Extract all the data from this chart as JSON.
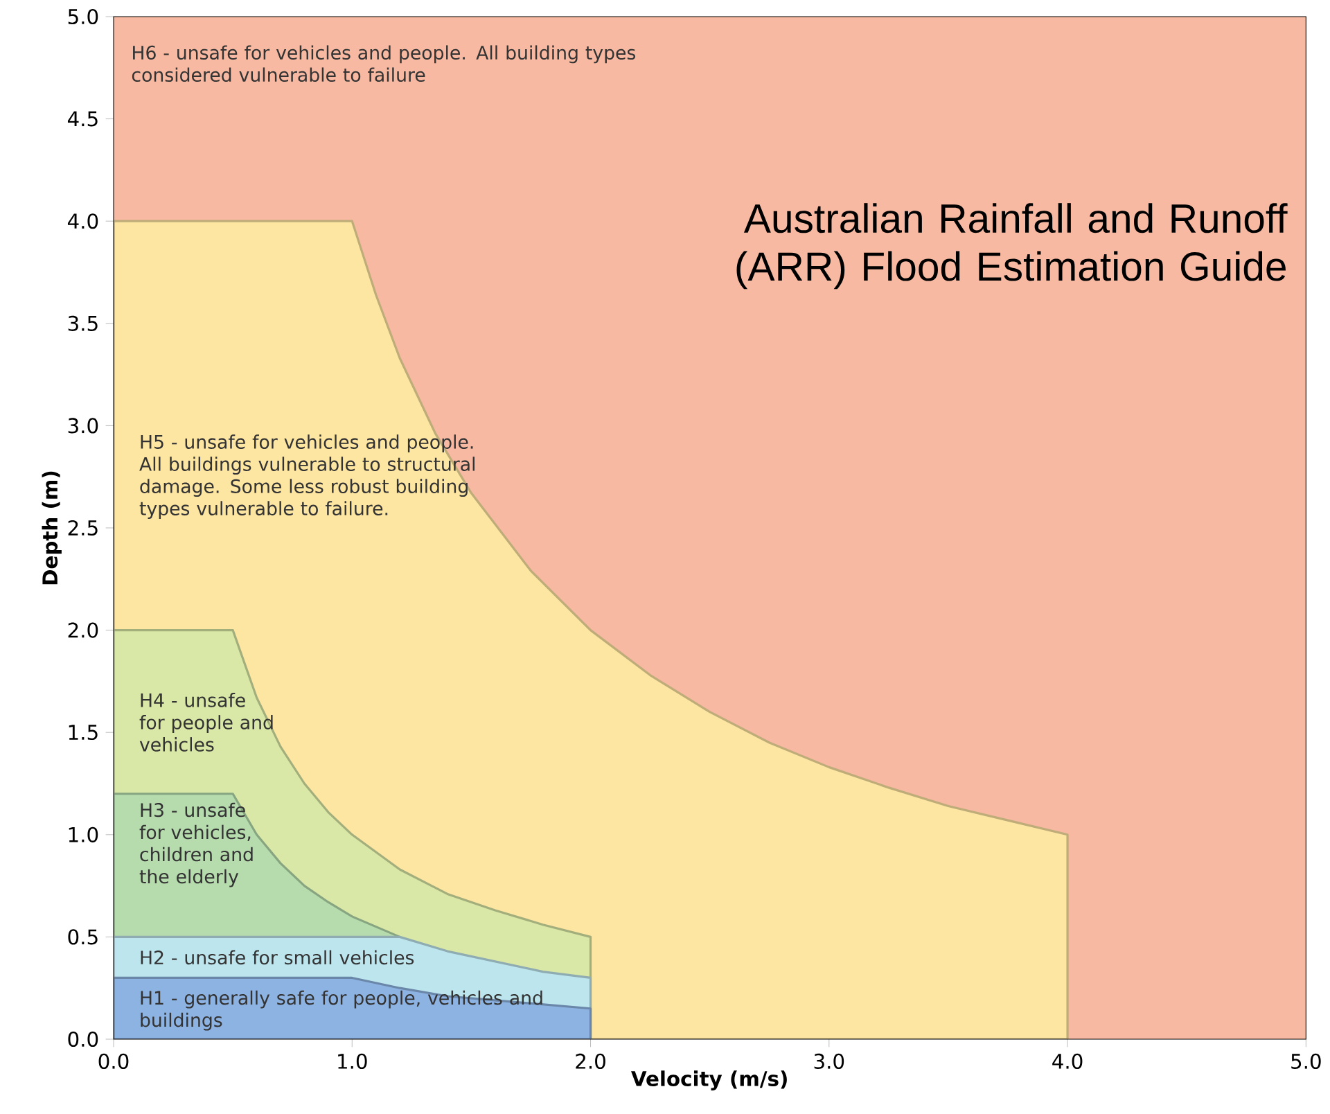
{
  "chart_data": {
    "type": "area",
    "xlabel": "Velocity (m/s)",
    "ylabel": "Depth (m)",
    "xlim": [
      0,
      5
    ],
    "ylim": [
      0,
      5
    ],
    "xticks": [
      {
        "value": 0,
        "label": "0.0"
      },
      {
        "value": 1,
        "label": "1.0"
      },
      {
        "value": 2,
        "label": "2.0"
      },
      {
        "value": 3,
        "label": "3.0"
      },
      {
        "value": 4,
        "label": "4.0"
      },
      {
        "value": 5,
        "label": "5.0"
      }
    ],
    "yticks": [
      {
        "value": 0,
        "label": "0.0"
      },
      {
        "value": 0.5,
        "label": "0.5"
      },
      {
        "value": 1,
        "label": "1.0"
      },
      {
        "value": 1.5,
        "label": "1.5"
      },
      {
        "value": 2,
        "label": "2.0"
      },
      {
        "value": 2.5,
        "label": "2.5"
      },
      {
        "value": 3,
        "label": "3.0"
      },
      {
        "value": 3.5,
        "label": "3.5"
      },
      {
        "value": 4,
        "label": "4.0"
      },
      {
        "value": 4.5,
        "label": "4.5"
      },
      {
        "value": 5,
        "label": "5.0"
      }
    ],
    "bands": [
      {
        "axis": "x",
        "from": 0,
        "to": 5,
        "label": "H6 - unsafe for vehicles and people. All building types considered vulnerable to failure",
        "color": "#f7b9a1"
      }
    ],
    "series": [
      {
        "name": "H5 - unsafe for vehicles and people. All buildings vulnerable to structural damage. Some less robust building types vulnerable to failure.",
        "color": "#fde5a2",
        "x": [
          0,
          1,
          1.1,
          1.2,
          1.35,
          1.5,
          1.75,
          2,
          2.25,
          2.5,
          2.75,
          3,
          3.25,
          3.5,
          3.75,
          4,
          4
        ],
        "values": [
          4,
          4,
          3.64,
          3.33,
          2.96,
          2.67,
          2.29,
          2,
          1.78,
          1.6,
          1.45,
          1.33,
          1.23,
          1.14,
          1.07,
          1,
          0
        ]
      },
      {
        "name": "H4 - unsafe for people and vehicles",
        "color": "#d9e8a6",
        "x": [
          0,
          0.5,
          0.6,
          0.7,
          0.8,
          0.9,
          1,
          1.2,
          1.4,
          1.6,
          1.8,
          2,
          2
        ],
        "values": [
          2,
          2,
          1.67,
          1.43,
          1.25,
          1.11,
          1,
          0.83,
          0.71,
          0.63,
          0.56,
          0.5,
          0
        ]
      },
      {
        "name": "H3 - unsafe for vehicles, children and the elderly",
        "color": "#b6dcae",
        "x": [
          0,
          0.5,
          0.6,
          0.7,
          0.8,
          0.9,
          1,
          1.1,
          1.2,
          1.2
        ],
        "values": [
          1.2,
          1.2,
          1,
          0.86,
          0.75,
          0.67,
          0.6,
          0.55,
          0.5,
          0
        ]
      },
      {
        "name": "H2 - unsafe for small vehicles",
        "color": "#bde5ee",
        "x": [
          0,
          1.2,
          1.4,
          1.6,
          1.8,
          2,
          2
        ],
        "values": [
          0.5,
          0.5,
          0.43,
          0.38,
          0.33,
          0.3,
          0
        ]
      },
      {
        "name": "H1 - generally safe for people, vehicles and buildings",
        "color": "#8db3e2",
        "x": [
          0,
          1,
          1.2,
          1.4,
          1.6,
          1.8,
          2,
          2
        ],
        "values": [
          0.3,
          0.3,
          0.25,
          0.21,
          0.19,
          0.17,
          0.15,
          0
        ]
      }
    ],
    "annotations": [
      "Australian Rainfall and Runoff (ARR) Flood Estimation Guide"
    ]
  }
}
